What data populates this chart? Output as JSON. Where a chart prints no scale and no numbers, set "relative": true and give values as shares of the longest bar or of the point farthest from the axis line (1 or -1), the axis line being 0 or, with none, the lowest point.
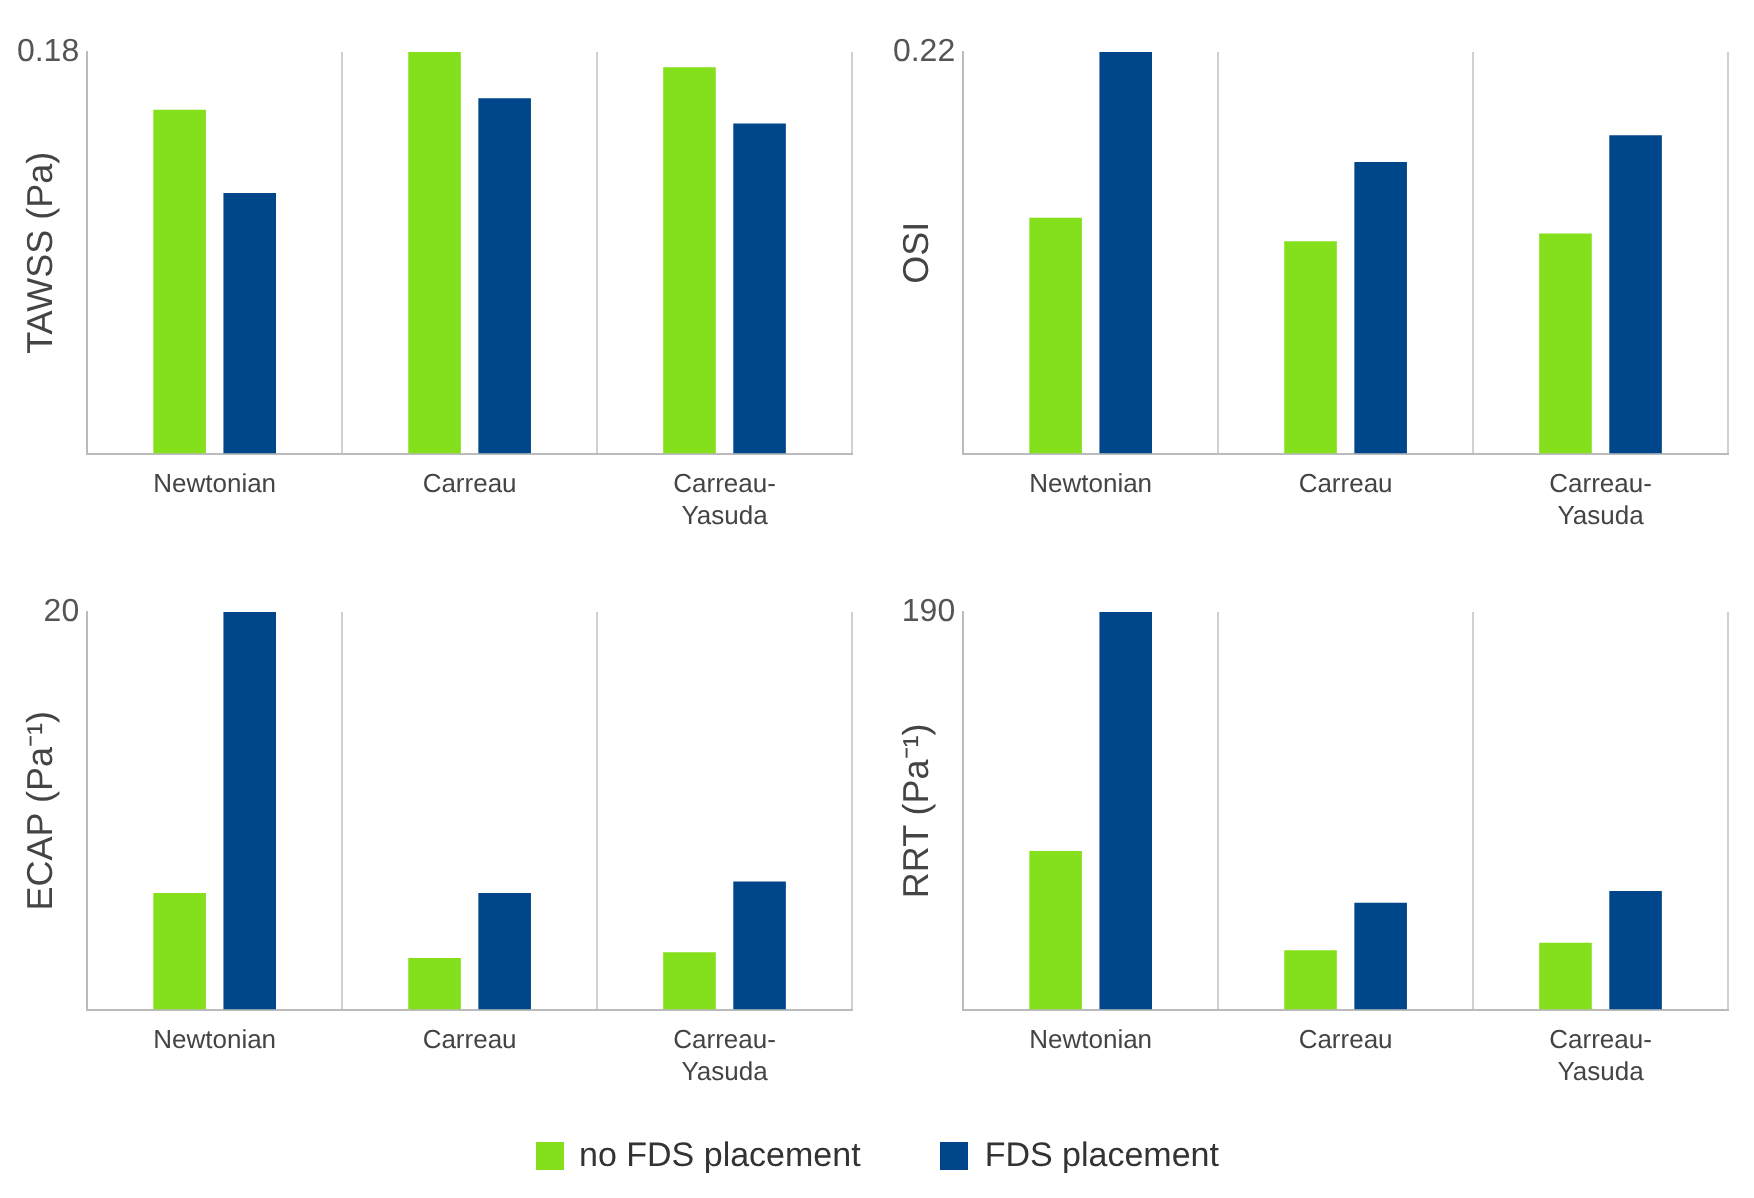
{
  "chart_data": [
    {
      "type": "bar",
      "ylabel": "TAWSS (Pa)",
      "categories": [
        "Newtonian",
        "Carreau",
        "Carreau-Yasuda"
      ],
      "relative": true,
      "grid": "x",
      "annotations": [
        "0.18"
      ],
      "series": [
        {
          "color": "#84e01b",
          "values": [
            0.856,
            1,
            0.962
          ]
        },
        {
          "color": "#00468b",
          "values": [
            0.649,
            0.885,
            0.822
          ]
        }
      ]
    },
    {
      "type": "bar",
      "ylabel": "OSI",
      "categories": [
        "Newtonian",
        "Carreau",
        "Carreau-Yasuda"
      ],
      "relative": true,
      "grid": "x",
      "annotations": [
        "0.22"
      ],
      "series": [
        {
          "color": "#84e01b",
          "values": [
            0.587,
            0.529,
            0.548
          ]
        },
        {
          "color": "#00468b",
          "values": [
            1,
            0.726,
            0.793
          ]
        }
      ]
    },
    {
      "type": "bar",
      "ylabel": "ECAP (Pa⁻¹)",
      "categories": [
        "Newtonian",
        "Carreau",
        "Carreau-Yasuda"
      ],
      "relative": true,
      "grid": "x",
      "annotations": [
        "20"
      ],
      "series": [
        {
          "color": "#84e01b",
          "values": [
            0.293,
            0.13,
            0.144
          ]
        },
        {
          "color": "#00468b",
          "values": [
            1,
            0.293,
            0.322
          ]
        }
      ]
    },
    {
      "type": "bar",
      "ylabel": "RRT (Pa⁻¹)",
      "categories": [
        "Newtonian",
        "Carreau",
        "Carreau-Yasuda"
      ],
      "relative": true,
      "grid": "x",
      "legend": "bottom",
      "annotations": [
        "190"
      ],
      "series": [
        {
          "name": "no FDS placement",
          "color": "#84e01b",
          "values": [
            0.399,
            0.149,
            0.168
          ]
        },
        {
          "name": "FDS placement",
          "color": "#00468b",
          "values": [
            1,
            0.269,
            0.298
          ]
        }
      ]
    }
  ]
}
